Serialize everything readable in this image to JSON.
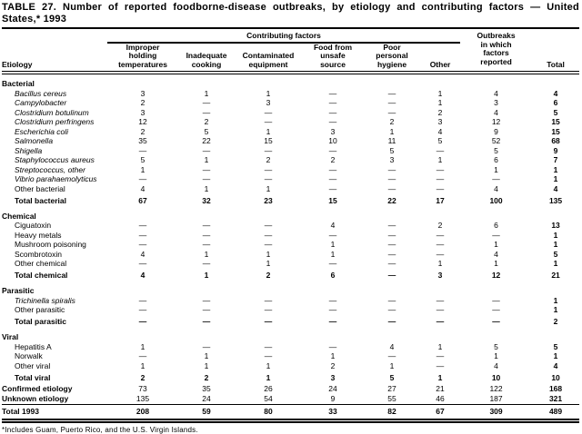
{
  "title": {
    "line1": "TABLE 27. Number of reported foodborne-disease outbreaks, by etiology and contributing factors — United",
    "line2": "States,* 1993"
  },
  "header": {
    "etiology": "Etiology",
    "group": "Contributing factors",
    "factors": [
      "Improper\nholding\ntemperatures",
      "Inadequate\ncooking",
      "Contaminated\nequipment",
      "Food from\nunsafe\nsource",
      "Poor\npersonal\nhygiene",
      "Other"
    ],
    "outbreaks": "Outbreaks\nin which\nfactors\nreported",
    "total": "Total"
  },
  "table": {
    "rows": [
      {
        "type": "section",
        "label": "Bacterial"
      },
      {
        "type": "item",
        "label": "Bacillus cereus",
        "italic": true,
        "values": [
          "3",
          "1",
          "1",
          "—",
          "—",
          "1",
          "4",
          "4"
        ]
      },
      {
        "type": "item",
        "label": "Campylobacter",
        "italic": true,
        "values": [
          "2",
          "—",
          "3",
          "—",
          "—",
          "1",
          "3",
          "6"
        ]
      },
      {
        "type": "item",
        "label": "Clostridium botulinum",
        "italic": true,
        "values": [
          "3",
          "—",
          "—",
          "—",
          "—",
          "2",
          "4",
          "5"
        ]
      },
      {
        "type": "item",
        "label": "Clostridium perfringens",
        "italic": true,
        "values": [
          "12",
          "2",
          "—",
          "—",
          "2",
          "3",
          "12",
          "15"
        ]
      },
      {
        "type": "item",
        "label": "Escherichia coli",
        "italic": true,
        "values": [
          "2",
          "5",
          "1",
          "3",
          "1",
          "4",
          "9",
          "15"
        ]
      },
      {
        "type": "item",
        "label": "Salmonella",
        "italic": true,
        "values": [
          "35",
          "22",
          "15",
          "10",
          "11",
          "5",
          "52",
          "68"
        ]
      },
      {
        "type": "item",
        "label": "Shigella",
        "italic": true,
        "values": [
          "—",
          "—",
          "—",
          "—",
          "5",
          "—",
          "5",
          "9"
        ]
      },
      {
        "type": "item",
        "label": "Staphylococcus aureus",
        "italic": true,
        "values": [
          "5",
          "1",
          "2",
          "2",
          "3",
          "1",
          "6",
          "7"
        ]
      },
      {
        "type": "item",
        "label": "Streptococcus, other",
        "italic": true,
        "values": [
          "1",
          "—",
          "—",
          "—",
          "—",
          "—",
          "1",
          "1"
        ]
      },
      {
        "type": "item",
        "label": "Vibrio parahaemolyticus",
        "italic": true,
        "values": [
          "—",
          "—",
          "—",
          "—",
          "—",
          "—",
          "—",
          "1"
        ]
      },
      {
        "type": "item",
        "label": "Other bacterial",
        "italic": false,
        "values": [
          "4",
          "1",
          "1",
          "—",
          "—",
          "—",
          "4",
          "4"
        ]
      },
      {
        "type": "total",
        "label": "Total bacterial",
        "values": [
          "67",
          "32",
          "23",
          "15",
          "22",
          "17",
          "100",
          "135"
        ]
      },
      {
        "type": "section",
        "label": "Chemical"
      },
      {
        "type": "item",
        "label": "Ciguatoxin",
        "italic": false,
        "values": [
          "—",
          "—",
          "—",
          "4",
          "—",
          "2",
          "6",
          "13"
        ]
      },
      {
        "type": "item",
        "label": "Heavy metals",
        "italic": false,
        "values": [
          "—",
          "—",
          "—",
          "—",
          "—",
          "—",
          "—",
          "1"
        ]
      },
      {
        "type": "item",
        "label": "Mushroom poisoning",
        "italic": false,
        "values": [
          "—",
          "—",
          "—",
          "1",
          "—",
          "—",
          "1",
          "1"
        ]
      },
      {
        "type": "item",
        "label": "Scombrotoxin",
        "italic": false,
        "values": [
          "4",
          "1",
          "1",
          "1",
          "—",
          "—",
          "4",
          "5"
        ]
      },
      {
        "type": "item",
        "label": "Other chemical",
        "italic": false,
        "values": [
          "—",
          "—",
          "1",
          "—",
          "—",
          "1",
          "1",
          "1"
        ]
      },
      {
        "type": "total",
        "label": "Total chemical",
        "values": [
          "4",
          "1",
          "2",
          "6",
          "—",
          "3",
          "12",
          "21"
        ]
      },
      {
        "type": "section",
        "label": "Parasitic"
      },
      {
        "type": "item",
        "label": "Trichinella spiralis",
        "italic": true,
        "values": [
          "—",
          "—",
          "—",
          "—",
          "—",
          "—",
          "—",
          "1"
        ]
      },
      {
        "type": "item",
        "label": "Other parasitic",
        "italic": false,
        "values": [
          "—",
          "—",
          "—",
          "—",
          "—",
          "—",
          "—",
          "1"
        ]
      },
      {
        "type": "total",
        "label": "Total parasitic",
        "values": [
          "—",
          "—",
          "—",
          "—",
          "—",
          "—",
          "—",
          "2"
        ]
      },
      {
        "type": "section",
        "label": "Viral"
      },
      {
        "type": "item",
        "label": "Hepatitis A",
        "italic": false,
        "values": [
          "1",
          "—",
          "—",
          "—",
          "4",
          "1",
          "5",
          "5"
        ]
      },
      {
        "type": "item",
        "label": "Norwalk",
        "italic": false,
        "values": [
          "—",
          "1",
          "—",
          "1",
          "—",
          "—",
          "1",
          "1"
        ]
      },
      {
        "type": "item",
        "label": "Other viral",
        "italic": false,
        "values": [
          "1",
          "1",
          "1",
          "2",
          "1",
          "—",
          "4",
          "4"
        ]
      },
      {
        "type": "total",
        "label": "Total viral",
        "values": [
          "2",
          "2",
          "1",
          "3",
          "5",
          "1",
          "10",
          "10"
        ]
      },
      {
        "type": "summary",
        "label": "Confirmed etiology",
        "values": [
          "73",
          "35",
          "26",
          "24",
          "27",
          "21",
          "122",
          "168"
        ]
      },
      {
        "type": "summary",
        "label": "Unknown etiology",
        "values": [
          "135",
          "24",
          "54",
          "9",
          "55",
          "46",
          "187",
          "321"
        ]
      },
      {
        "type": "grand",
        "label": "Total 1993",
        "values": [
          "208",
          "59",
          "80",
          "33",
          "82",
          "67",
          "309",
          "489"
        ]
      }
    ]
  },
  "footnote": "*Includes Guam, Puerto Rico, and the U.S. Virgin Islands.",
  "colors": {
    "text": "#000000",
    "background": "#ffffff",
    "rule": "#000000"
  }
}
